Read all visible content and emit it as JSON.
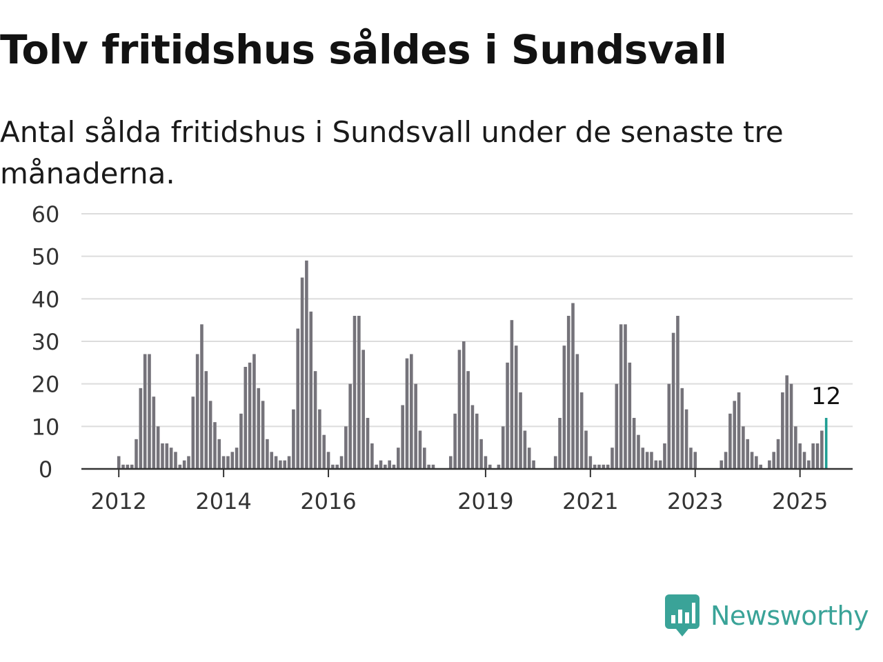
{
  "title": "Tolv fritidshus såldes i Sundsvall",
  "subtitle": "Antal sålda fritidshus i Sundsvall under de senaste tre månaderna.",
  "brand": {
    "name": "Newsworthy",
    "color": "#3aa398"
  },
  "colors": {
    "bar": "#75737a",
    "highlight": "#1f9e93",
    "grid": "#dcdcdc",
    "axis": "#333333",
    "text": "#333333"
  },
  "chart_data": {
    "type": "bar",
    "title": "Tolv fritidshus såldes i Sundsvall",
    "subtitle": "Antal sålda fritidshus i Sundsvall under de senaste tre månaderna.",
    "xlabel": "",
    "ylabel": "",
    "ylim": [
      0,
      60
    ],
    "yticks": [
      0,
      10,
      20,
      30,
      40,
      50,
      60
    ],
    "xticks": [
      "2012",
      "2014",
      "2016",
      "2019",
      "2021",
      "2023",
      "2025"
    ],
    "grid": true,
    "highlight_label": "12",
    "series": [
      {
        "values": [
          3,
          1,
          1,
          1,
          7,
          19,
          27,
          27,
          17,
          10,
          6,
          6,
          5,
          4,
          1,
          2,
          3,
          17,
          27,
          34,
          23,
          16,
          11,
          7,
          3,
          3,
          4,
          5,
          13,
          24,
          25,
          27,
          19,
          16,
          7,
          4,
          3,
          2,
          2,
          3,
          14,
          33,
          45,
          49,
          37,
          23,
          14,
          8,
          4,
          1,
          1,
          3,
          10,
          20,
          36,
          36,
          28,
          12,
          6,
          1,
          2,
          1,
          2,
          1,
          5,
          15,
          26,
          27,
          20,
          9,
          5,
          1,
          1,
          0,
          0,
          0,
          3,
          13,
          28,
          30,
          23,
          15,
          13,
          7,
          3,
          1,
          0,
          1,
          10,
          25,
          35,
          29,
          18,
          9,
          5,
          2,
          0,
          0,
          0,
          0,
          3,
          12,
          29,
          36,
          39,
          27,
          18,
          9,
          3,
          1,
          1,
          1,
          1,
          5,
          20,
          34,
          34,
          25,
          12,
          8,
          5,
          4,
          4,
          2,
          2,
          6,
          20,
          32,
          36,
          19,
          14,
          5,
          4,
          0,
          0,
          0,
          0,
          0,
          2,
          4,
          13,
          16,
          18,
          10,
          7,
          4,
          3,
          1,
          0,
          2,
          4,
          7,
          18,
          22,
          20,
          10,
          6,
          4,
          2,
          6,
          6,
          9,
          12
        ]
      }
    ]
  }
}
